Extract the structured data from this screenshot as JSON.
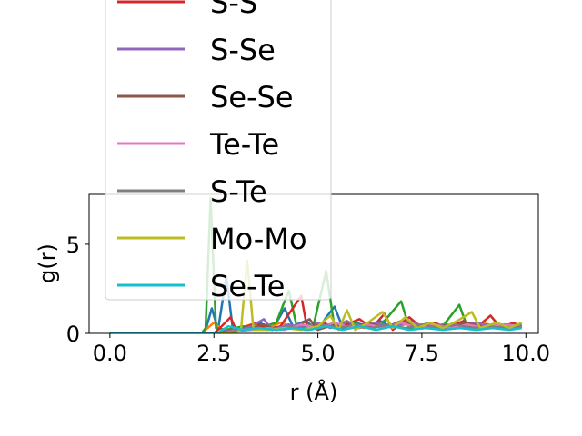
{
  "chart_data": {
    "type": "line",
    "xlabel": "r (Å)",
    "ylabel": "g(r)",
    "xlim": [
      -0.5,
      10.3
    ],
    "ylim": [
      0,
      7.8
    ],
    "xticks": [
      0.0,
      2.5,
      5.0,
      7.5,
      10.0
    ],
    "xtick_labels": [
      "0.0",
      "2.5",
      "5.0",
      "7.5",
      "10.0"
    ],
    "yticks": [
      0,
      5
    ],
    "ytick_labels": [
      "0",
      "5"
    ],
    "grid": false,
    "legend_position": "upper-left (extends above plot)",
    "series": [
      {
        "name": "",
        "color": "#1f77b4",
        "points": [
          [
            0,
            0
          ],
          [
            2.0,
            0
          ],
          [
            2.2,
            0
          ],
          [
            2.3,
            0.2
          ],
          [
            2.45,
            1.4
          ],
          [
            2.6,
            0.2
          ],
          [
            2.8,
            3.2
          ],
          [
            2.95,
            0.3
          ],
          [
            3.3,
            0.2
          ],
          [
            3.6,
            0.6
          ],
          [
            3.9,
            0.2
          ],
          [
            4.2,
            1.4
          ],
          [
            4.4,
            0.4
          ],
          [
            4.7,
            0.7
          ],
          [
            5.0,
            0.2
          ],
          [
            5.2,
            0.9
          ],
          [
            5.4,
            1.5
          ],
          [
            5.6,
            0.3
          ],
          [
            5.9,
            0.6
          ],
          [
            6.2,
            0.4
          ],
          [
            6.5,
            0.7
          ],
          [
            6.8,
            0.3
          ],
          [
            7.1,
            0.6
          ],
          [
            7.4,
            0.4
          ],
          [
            7.7,
            0.6
          ],
          [
            8.0,
            0.3
          ],
          [
            8.3,
            0.5
          ],
          [
            8.6,
            0.4
          ],
          [
            8.9,
            0.6
          ],
          [
            9.2,
            0.3
          ],
          [
            9.5,
            0.5
          ],
          [
            9.9,
            0.4
          ]
        ]
      },
      {
        "name": "",
        "color": "#ff7f0e",
        "points": [
          [
            0,
            0
          ],
          [
            2.2,
            0
          ],
          [
            2.35,
            0.3
          ],
          [
            2.5,
            0.6
          ],
          [
            2.7,
            0.2
          ],
          [
            3.1,
            0.3
          ],
          [
            3.4,
            0.5
          ],
          [
            3.8,
            0.3
          ],
          [
            4.1,
            0.6
          ],
          [
            4.5,
            0.3
          ],
          [
            4.9,
            0.5
          ],
          [
            5.3,
            0.4
          ],
          [
            5.7,
            0.6
          ],
          [
            6.1,
            0.3
          ],
          [
            6.5,
            0.5
          ],
          [
            6.9,
            0.4
          ],
          [
            7.3,
            0.6
          ],
          [
            7.7,
            0.3
          ],
          [
            8.1,
            0.5
          ],
          [
            8.5,
            0.4
          ],
          [
            8.9,
            0.6
          ],
          [
            9.3,
            0.4
          ],
          [
            9.9,
            0.5
          ]
        ]
      },
      {
        "name": "",
        "color": "#2ca02c",
        "points": [
          [
            0,
            0
          ],
          [
            2.2,
            0
          ],
          [
            2.3,
            0.3
          ],
          [
            2.42,
            7.6
          ],
          [
            2.55,
            0.3
          ],
          [
            2.8,
            0.2
          ],
          [
            3.2,
            0.4
          ],
          [
            3.6,
            0.3
          ],
          [
            4.0,
            0.6
          ],
          [
            4.3,
            2.4
          ],
          [
            4.5,
            0.3
          ],
          [
            4.9,
            0.5
          ],
          [
            5.2,
            3.5
          ],
          [
            5.4,
            0.3
          ],
          [
            5.8,
            0.6
          ],
          [
            6.2,
            0.4
          ],
          [
            6.6,
            0.7
          ],
          [
            7.0,
            1.8
          ],
          [
            7.2,
            0.3
          ],
          [
            7.6,
            0.5
          ],
          [
            8.0,
            0.4
          ],
          [
            8.4,
            1.6
          ],
          [
            8.6,
            0.3
          ],
          [
            9.0,
            0.5
          ],
          [
            9.4,
            0.4
          ],
          [
            9.9,
            0.5
          ]
        ]
      },
      {
        "name": "S-S",
        "color": "#d62728",
        "points": [
          [
            0,
            0
          ],
          [
            2.5,
            0
          ],
          [
            2.6,
            0.2
          ],
          [
            2.9,
            0.9
          ],
          [
            3.05,
            0.1
          ],
          [
            3.5,
            0.6
          ],
          [
            3.8,
            0.2
          ],
          [
            4.1,
            0.4
          ],
          [
            4.6,
            2.1
          ],
          [
            4.75,
            0.2
          ],
          [
            5.1,
            0.6
          ],
          [
            5.5,
            0.3
          ],
          [
            6.0,
            0.8
          ],
          [
            6.3,
            0.3
          ],
          [
            6.6,
            1.1
          ],
          [
            6.8,
            0.2
          ],
          [
            7.2,
            0.9
          ],
          [
            7.5,
            0.3
          ],
          [
            7.8,
            0.6
          ],
          [
            8.1,
            0.3
          ],
          [
            8.5,
            0.7
          ],
          [
            8.8,
            0.3
          ],
          [
            9.15,
            1.0
          ],
          [
            9.4,
            0.3
          ],
          [
            9.7,
            0.6
          ],
          [
            9.9,
            0.3
          ]
        ]
      },
      {
        "name": "S-Se",
        "color": "#9467bd",
        "points": [
          [
            0,
            0
          ],
          [
            2.6,
            0
          ],
          [
            2.75,
            0.2
          ],
          [
            3.0,
            0.1
          ],
          [
            3.4,
            0.4
          ],
          [
            3.7,
            0.8
          ],
          [
            3.9,
            0.2
          ],
          [
            4.3,
            0.5
          ],
          [
            4.7,
            0.3
          ],
          [
            5.0,
            0.6
          ],
          [
            5.3,
            0.3
          ],
          [
            5.7,
            0.7
          ],
          [
            6.0,
            0.3
          ],
          [
            6.4,
            0.6
          ],
          [
            6.8,
            0.3
          ],
          [
            7.2,
            0.7
          ],
          [
            7.6,
            0.3
          ],
          [
            8.0,
            0.5
          ],
          [
            8.4,
            0.4
          ],
          [
            8.8,
            0.6
          ],
          [
            9.2,
            0.4
          ],
          [
            9.6,
            0.5
          ],
          [
            9.9,
            0.4
          ]
        ]
      },
      {
        "name": "Se-Se",
        "color": "#8c564b",
        "points": [
          [
            0,
            0
          ],
          [
            2.6,
            0
          ],
          [
            2.8,
            0.1
          ],
          [
            3.3,
            0.2
          ],
          [
            3.7,
            0.5
          ],
          [
            4.0,
            0.2
          ],
          [
            4.5,
            0.4
          ],
          [
            4.8,
            0.8
          ],
          [
            5.0,
            0.2
          ],
          [
            5.4,
            0.5
          ],
          [
            5.8,
            0.3
          ],
          [
            6.2,
            0.6
          ],
          [
            6.6,
            0.3
          ],
          [
            7.0,
            0.7
          ],
          [
            7.4,
            0.3
          ],
          [
            7.8,
            0.5
          ],
          [
            8.2,
            0.4
          ],
          [
            8.6,
            0.6
          ],
          [
            9.0,
            0.3
          ],
          [
            9.4,
            0.5
          ],
          [
            9.9,
            0.4
          ]
        ]
      },
      {
        "name": "Te-Te",
        "color": "#e377c2",
        "points": [
          [
            0,
            0
          ],
          [
            2.7,
            0
          ],
          [
            2.9,
            0.1
          ],
          [
            3.4,
            0.2
          ],
          [
            3.8,
            0.3
          ],
          [
            4.2,
            0.2
          ],
          [
            4.6,
            0.5
          ],
          [
            5.0,
            0.3
          ],
          [
            5.4,
            0.6
          ],
          [
            5.8,
            0.3
          ],
          [
            6.2,
            0.5
          ],
          [
            6.6,
            0.3
          ],
          [
            7.0,
            0.6
          ],
          [
            7.4,
            0.3
          ],
          [
            7.8,
            0.5
          ],
          [
            8.2,
            0.3
          ],
          [
            8.6,
            0.5
          ],
          [
            9.0,
            0.3
          ],
          [
            9.4,
            0.5
          ],
          [
            9.9,
            0.4
          ]
        ]
      },
      {
        "name": "S-Te",
        "color": "#7f7f7f",
        "points": [
          [
            0,
            0
          ],
          [
            2.7,
            0
          ],
          [
            3.0,
            0.1
          ],
          [
            3.5,
            0.3
          ],
          [
            3.9,
            0.2
          ],
          [
            4.3,
            0.4
          ],
          [
            4.7,
            0.2
          ],
          [
            5.1,
            0.5
          ],
          [
            5.5,
            0.3
          ],
          [
            5.9,
            0.5
          ],
          [
            6.3,
            0.3
          ],
          [
            6.7,
            0.5
          ],
          [
            7.1,
            0.3
          ],
          [
            7.5,
            0.5
          ],
          [
            7.9,
            0.3
          ],
          [
            8.3,
            0.5
          ],
          [
            8.7,
            0.3
          ],
          [
            9.1,
            0.4
          ],
          [
            9.5,
            0.3
          ],
          [
            9.9,
            0.4
          ]
        ]
      },
      {
        "name": "Mo-Mo",
        "color": "#bcbd22",
        "points": [
          [
            0,
            0
          ],
          [
            3.0,
            0
          ],
          [
            3.15,
            0.2
          ],
          [
            3.3,
            4.1
          ],
          [
            3.45,
            0.2
          ],
          [
            3.8,
            0.2
          ],
          [
            4.2,
            0.3
          ],
          [
            4.6,
            0.2
          ],
          [
            5.0,
            0.4
          ],
          [
            5.3,
            1.0
          ],
          [
            5.5,
            0.2
          ],
          [
            5.7,
            1.3
          ],
          [
            5.9,
            0.2
          ],
          [
            6.2,
            0.6
          ],
          [
            6.55,
            1.2
          ],
          [
            6.8,
            0.3
          ],
          [
            7.1,
            0.9
          ],
          [
            7.4,
            0.3
          ],
          [
            7.7,
            0.6
          ],
          [
            8.0,
            0.3
          ],
          [
            8.35,
            0.7
          ],
          [
            8.7,
            1.2
          ],
          [
            8.9,
            0.3
          ],
          [
            9.3,
            0.6
          ],
          [
            9.6,
            0.3
          ],
          [
            9.9,
            0.6
          ]
        ]
      },
      {
        "name": "Se-Te",
        "color": "#17becf",
        "points": [
          [
            0,
            0
          ],
          [
            2.6,
            0
          ],
          [
            2.7,
            0.2
          ],
          [
            2.85,
            0.4
          ],
          [
            3.2,
            0.2
          ],
          [
            3.6,
            0.3
          ],
          [
            4.0,
            0.2
          ],
          [
            4.4,
            0.3
          ],
          [
            4.8,
            0.2
          ],
          [
            5.2,
            0.4
          ],
          [
            5.6,
            0.2
          ],
          [
            6.0,
            0.4
          ],
          [
            6.4,
            0.2
          ],
          [
            6.8,
            0.4
          ],
          [
            7.2,
            0.2
          ],
          [
            7.6,
            0.3
          ],
          [
            8.0,
            0.2
          ],
          [
            8.4,
            0.3
          ],
          [
            8.8,
            0.2
          ],
          [
            9.2,
            0.3
          ],
          [
            9.6,
            0.2
          ],
          [
            9.9,
            0.3
          ]
        ]
      }
    ]
  }
}
